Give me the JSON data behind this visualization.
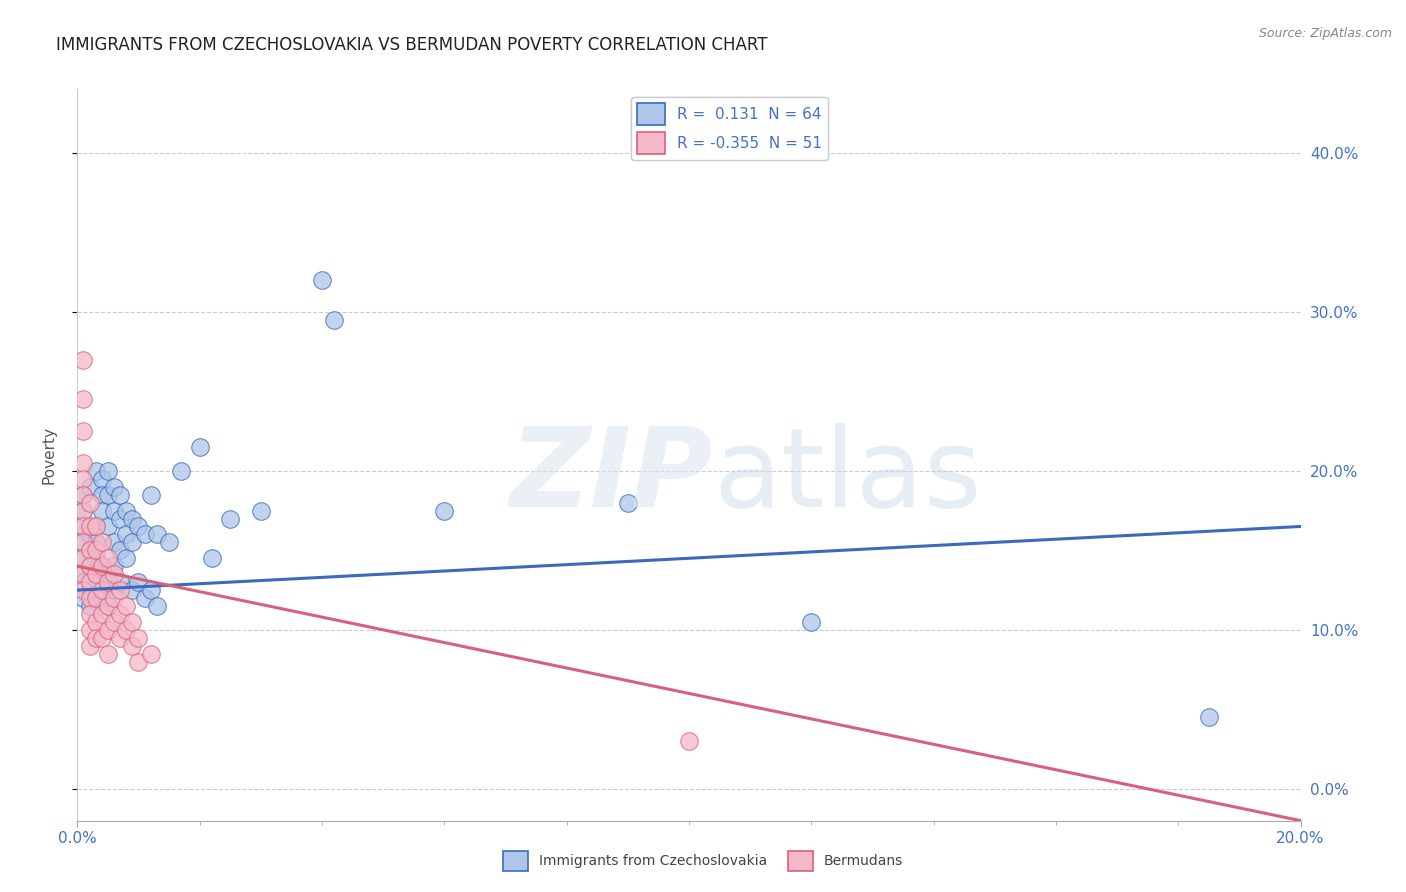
{
  "title": "IMMIGRANTS FROM CZECHOSLOVAKIA VS BERMUDAN POVERTY CORRELATION CHART",
  "source": "Source: ZipAtlas.com",
  "ylabel": "Poverty",
  "xlim": [
    0,
    0.2
  ],
  "ylim": [
    -0.02,
    0.44
  ],
  "background_color": "#ffffff",
  "blue_r": 0.131,
  "blue_n": 64,
  "pink_r": -0.355,
  "pink_n": 51,
  "blue_color": "#aec6e8",
  "pink_color": "#f5b8c8",
  "blue_line_color": "#3a6abf",
  "pink_line_color": "#d9607a",
  "grid_color": "#cccccc",
  "blue_scatter": [
    [
      0.001,
      0.135
    ],
    [
      0.001,
      0.145
    ],
    [
      0.001,
      0.155
    ],
    [
      0.001,
      0.165
    ],
    [
      0.001,
      0.175
    ],
    [
      0.001,
      0.185
    ],
    [
      0.001,
      0.13
    ],
    [
      0.001,
      0.12
    ],
    [
      0.002,
      0.14
    ],
    [
      0.002,
      0.15
    ],
    [
      0.002,
      0.16
    ],
    [
      0.002,
      0.125
    ],
    [
      0.002,
      0.115
    ],
    [
      0.002,
      0.19
    ],
    [
      0.003,
      0.145
    ],
    [
      0.003,
      0.155
    ],
    [
      0.003,
      0.165
    ],
    [
      0.003,
      0.13
    ],
    [
      0.003,
      0.2
    ],
    [
      0.004,
      0.195
    ],
    [
      0.004,
      0.185
    ],
    [
      0.004,
      0.175
    ],
    [
      0.004,
      0.14
    ],
    [
      0.004,
      0.12
    ],
    [
      0.005,
      0.2
    ],
    [
      0.005,
      0.185
    ],
    [
      0.005,
      0.165
    ],
    [
      0.005,
      0.135
    ],
    [
      0.005,
      0.115
    ],
    [
      0.006,
      0.19
    ],
    [
      0.006,
      0.175
    ],
    [
      0.006,
      0.155
    ],
    [
      0.006,
      0.14
    ],
    [
      0.006,
      0.125
    ],
    [
      0.007,
      0.185
    ],
    [
      0.007,
      0.17
    ],
    [
      0.007,
      0.15
    ],
    [
      0.007,
      0.13
    ],
    [
      0.008,
      0.175
    ],
    [
      0.008,
      0.16
    ],
    [
      0.008,
      0.145
    ],
    [
      0.009,
      0.17
    ],
    [
      0.009,
      0.155
    ],
    [
      0.009,
      0.125
    ],
    [
      0.01,
      0.165
    ],
    [
      0.01,
      0.13
    ],
    [
      0.011,
      0.16
    ],
    [
      0.011,
      0.12
    ],
    [
      0.012,
      0.185
    ],
    [
      0.012,
      0.125
    ],
    [
      0.013,
      0.16
    ],
    [
      0.013,
      0.115
    ],
    [
      0.015,
      0.155
    ],
    [
      0.017,
      0.2
    ],
    [
      0.02,
      0.215
    ],
    [
      0.022,
      0.145
    ],
    [
      0.025,
      0.17
    ],
    [
      0.03,
      0.175
    ],
    [
      0.04,
      0.32
    ],
    [
      0.042,
      0.295
    ],
    [
      0.06,
      0.175
    ],
    [
      0.09,
      0.18
    ],
    [
      0.12,
      0.105
    ],
    [
      0.185,
      0.045
    ]
  ],
  "pink_scatter": [
    [
      0.001,
      0.27
    ],
    [
      0.001,
      0.245
    ],
    [
      0.001,
      0.225
    ],
    [
      0.001,
      0.205
    ],
    [
      0.001,
      0.195
    ],
    [
      0.001,
      0.185
    ],
    [
      0.001,
      0.175
    ],
    [
      0.001,
      0.165
    ],
    [
      0.001,
      0.155
    ],
    [
      0.001,
      0.145
    ],
    [
      0.001,
      0.135
    ],
    [
      0.001,
      0.125
    ],
    [
      0.002,
      0.18
    ],
    [
      0.002,
      0.165
    ],
    [
      0.002,
      0.15
    ],
    [
      0.002,
      0.14
    ],
    [
      0.002,
      0.13
    ],
    [
      0.002,
      0.12
    ],
    [
      0.002,
      0.11
    ],
    [
      0.002,
      0.1
    ],
    [
      0.002,
      0.09
    ],
    [
      0.003,
      0.165
    ],
    [
      0.003,
      0.15
    ],
    [
      0.003,
      0.135
    ],
    [
      0.003,
      0.12
    ],
    [
      0.003,
      0.105
    ],
    [
      0.003,
      0.095
    ],
    [
      0.004,
      0.155
    ],
    [
      0.004,
      0.14
    ],
    [
      0.004,
      0.125
    ],
    [
      0.004,
      0.11
    ],
    [
      0.004,
      0.095
    ],
    [
      0.005,
      0.145
    ],
    [
      0.005,
      0.13
    ],
    [
      0.005,
      0.115
    ],
    [
      0.005,
      0.1
    ],
    [
      0.005,
      0.085
    ],
    [
      0.006,
      0.135
    ],
    [
      0.006,
      0.12
    ],
    [
      0.006,
      0.105
    ],
    [
      0.007,
      0.125
    ],
    [
      0.007,
      0.11
    ],
    [
      0.007,
      0.095
    ],
    [
      0.008,
      0.115
    ],
    [
      0.008,
      0.1
    ],
    [
      0.009,
      0.105
    ],
    [
      0.009,
      0.09
    ],
    [
      0.01,
      0.095
    ],
    [
      0.01,
      0.08
    ],
    [
      0.012,
      0.085
    ],
    [
      0.1,
      0.03
    ]
  ],
  "blue_line": [
    [
      0.0,
      0.125
    ],
    [
      0.2,
      0.165
    ]
  ],
  "pink_line": [
    [
      0.0,
      0.14
    ],
    [
      0.2,
      -0.02
    ]
  ],
  "yticks": [
    0.0,
    0.1,
    0.2,
    0.3,
    0.4
  ],
  "xtick_left": "0.0%",
  "xtick_right": "20.0%"
}
